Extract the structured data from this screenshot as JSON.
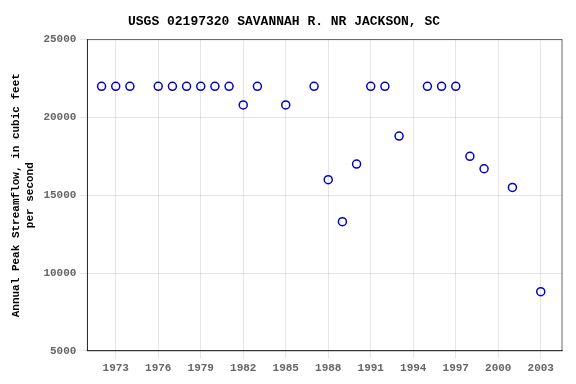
{
  "chart_data": {
    "type": "scatter",
    "title": "USGS 02197320 SAVANNAH R. NR JACKSON, SC",
    "ylabel": "Annual Peak Streamflow, in cubic feet\nper second",
    "x": [
      1972,
      1973,
      1974,
      1976,
      1977,
      1978,
      1979,
      1980,
      1981,
      1982,
      1983,
      1985,
      1987,
      1988,
      1989,
      1990,
      1991,
      1992,
      1993,
      1995,
      1996,
      1997,
      1998,
      1999,
      2001,
      2003
    ],
    "values": [
      22000,
      22000,
      22000,
      22000,
      22000,
      22000,
      22000,
      22000,
      22000,
      20800,
      22000,
      20800,
      22000,
      16000,
      13300,
      17000,
      22000,
      22000,
      18800,
      22000,
      22000,
      22000,
      17500,
      16700,
      15500,
      8800
    ],
    "xlim": [
      1971,
      2004.5
    ],
    "xticks": [
      1973,
      1976,
      1979,
      1982,
      1985,
      1988,
      1991,
      1994,
      1997,
      2000,
      2003
    ],
    "ylim": [
      5000,
      25000
    ],
    "yticks": [
      5000,
      10000,
      15000,
      20000,
      25000
    ],
    "color": "#0000CC",
    "marker": "circle",
    "grid": true
  }
}
